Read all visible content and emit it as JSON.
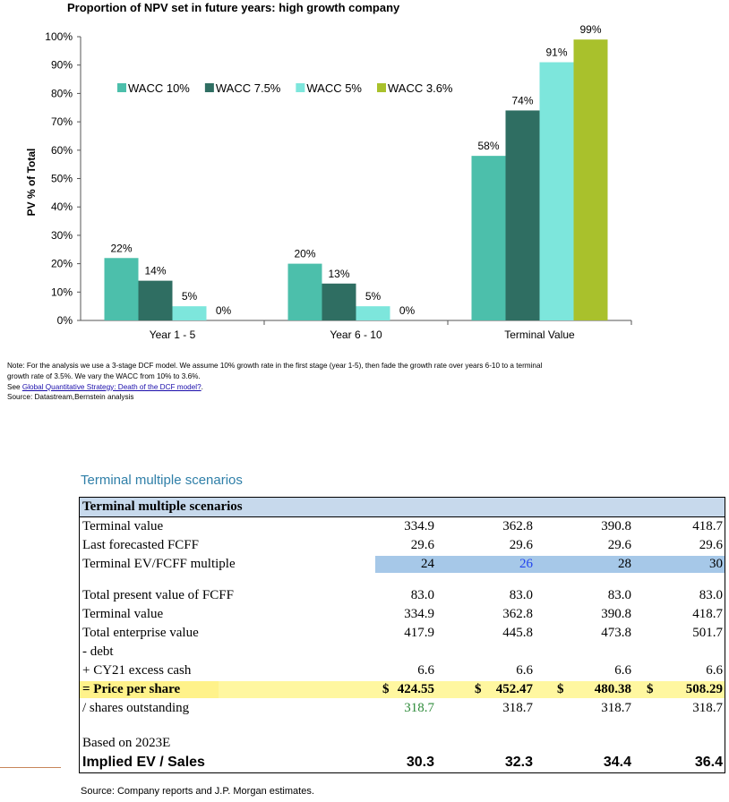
{
  "chart_data": {
    "type": "bar",
    "title": "Proportion of NPV set in future years: high growth company",
    "ylabel": "PV % of Total",
    "xlabel": "",
    "ylim": [
      0,
      100
    ],
    "yticks": [
      "0%",
      "10%",
      "20%",
      "30%",
      "40%",
      "50%",
      "60%",
      "70%",
      "80%",
      "90%",
      "100%"
    ],
    "grid": false,
    "legend_position": "top-left",
    "categories": [
      "Year 1 - 5",
      "Year 6 - 10",
      "Terminal Value"
    ],
    "series": [
      {
        "name": "WACC 10%",
        "color": "#4cbfab",
        "values": [
          22,
          20,
          58
        ],
        "labels": [
          "22%",
          "20%",
          "58%"
        ]
      },
      {
        "name": "WACC 7.5%",
        "color": "#2f6e62",
        "values": [
          14,
          13,
          74
        ],
        "labels": [
          "14%",
          "13%",
          "74%"
        ]
      },
      {
        "name": "WACC 5%",
        "color": "#7de6dc",
        "values": [
          5,
          5,
          91
        ],
        "labels": [
          "5%",
          "5%",
          "91%"
        ]
      },
      {
        "name": "WACC 3.6%",
        "color": "#a9c12c",
        "values": [
          0,
          0,
          99
        ],
        "labels": [
          "0%",
          "0%",
          "99%"
        ]
      }
    ]
  },
  "notes": {
    "line1": "Note: For the analysis we use a 3-stage DCF model. We assume 10% growth rate in the first stage (year 1-5), then fade the growth rate over years 6-10 to a terminal",
    "line2": "growth rate of 3.5%. We vary the WACC from 10% to 3.6%.",
    "see_prefix": "See ",
    "see_link": "Global Quantitative Strategy: Death of the DCF model?",
    "see_suffix": ".",
    "source": "Source: Datastream,Bernstein analysis"
  },
  "table": {
    "title": "Terminal multiple scenarios",
    "header": "Terminal multiple scenarios",
    "rows": {
      "terminal_value": {
        "label": "Terminal value",
        "values": [
          "334.9",
          "362.8",
          "390.8",
          "418.7"
        ]
      },
      "last_fcff": {
        "label": "Last forecasted FCFF",
        "values": [
          "29.6",
          "29.6",
          "29.6",
          "29.6"
        ]
      },
      "ev_fcff_multiple": {
        "label": "Terminal EV/FCFF multiple",
        "values": [
          "24",
          "26",
          "28",
          "30"
        ]
      },
      "total_pv_fcff": {
        "label": "Total present value of FCFF",
        "values": [
          "83.0",
          "83.0",
          "83.0",
          "83.0"
        ]
      },
      "terminal_value2": {
        "label": "Terminal value",
        "values": [
          "334.9",
          "362.8",
          "390.8",
          "418.7"
        ]
      },
      "total_ev": {
        "label": "Total enterprise value",
        "values": [
          "417.9",
          "445.8",
          "473.8",
          "501.7"
        ]
      },
      "debt": {
        "label": "- debt"
      },
      "excess_cash": {
        "label": "+ CY21 excess cash",
        "values": [
          "6.6",
          "6.6",
          "6.6",
          "6.6"
        ]
      },
      "price_per_share": {
        "label": "= Price per share",
        "currency": "$",
        "values": [
          "424.55",
          "452.47",
          "480.38",
          "508.29"
        ]
      },
      "shares_outstanding": {
        "label": "/ shares outstanding",
        "values": [
          "318.7",
          "318.7",
          "318.7",
          "318.7"
        ]
      },
      "based_on": {
        "label": "Based on 2023E"
      },
      "implied_ev_sales": {
        "label": "Implied EV / Sales",
        "values": [
          "30.3",
          "32.3",
          "34.4",
          "36.4"
        ]
      }
    },
    "source": "Source: Company reports and J.P. Morgan estimates."
  }
}
